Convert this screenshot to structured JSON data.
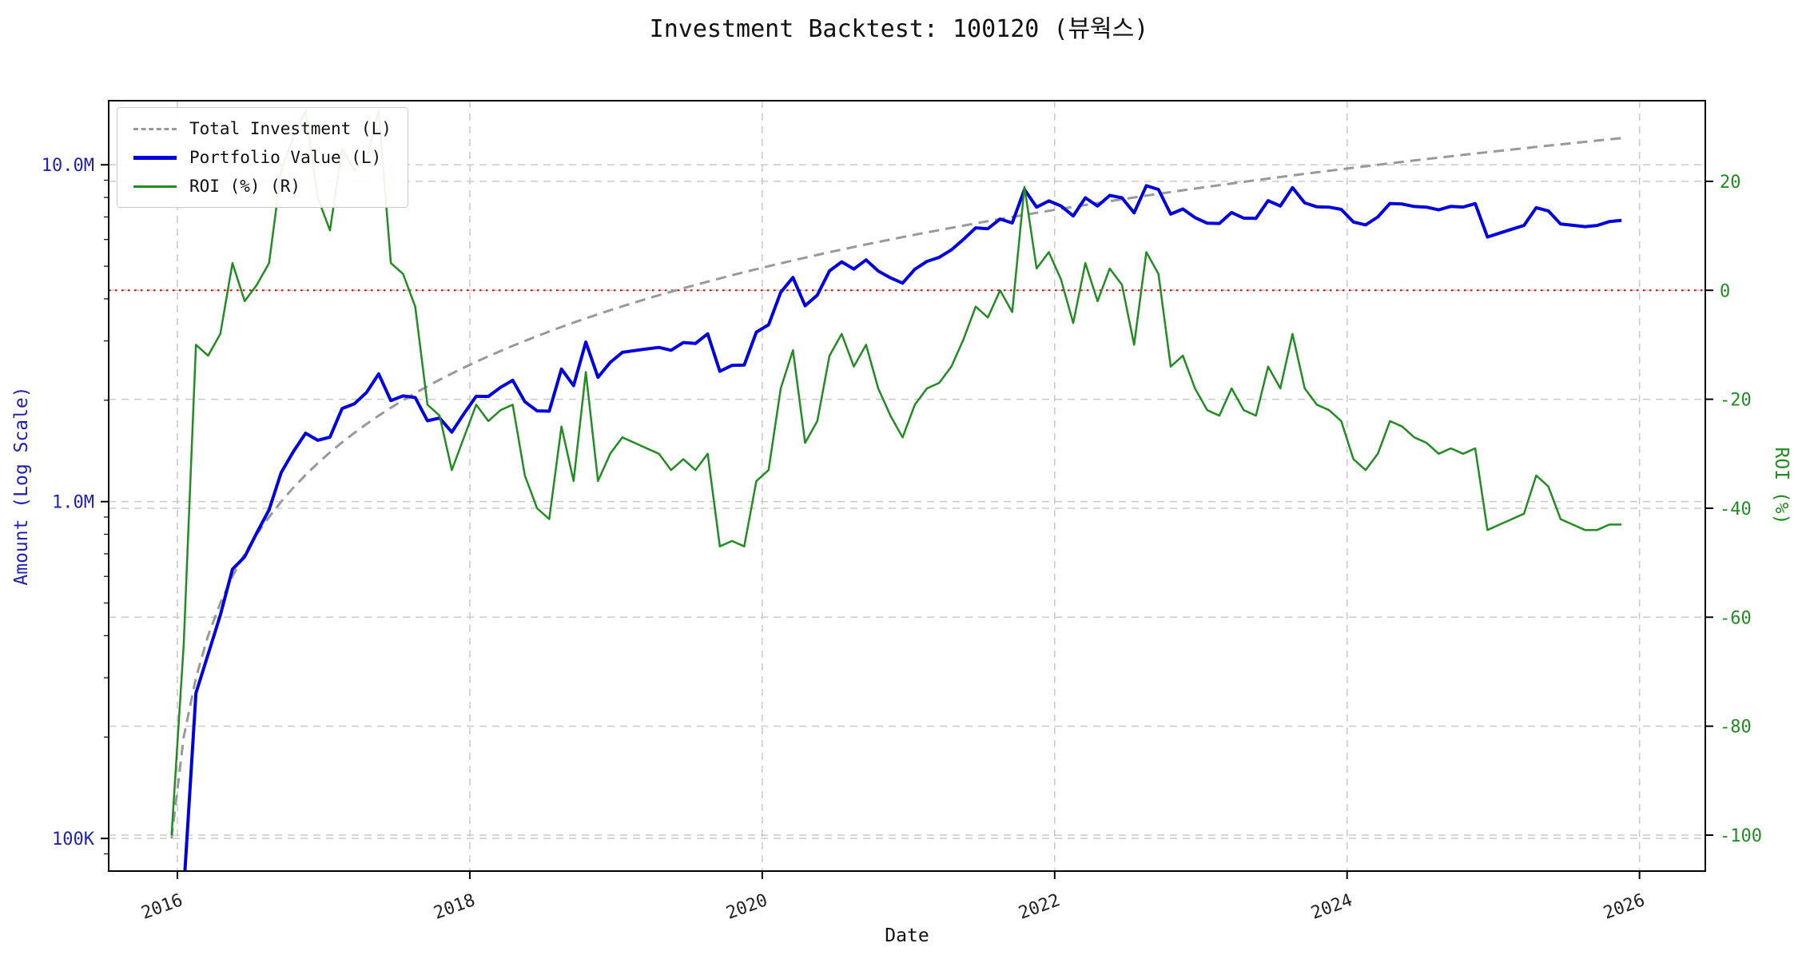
{
  "title": "Investment Backtest: 100120 (뷰웍스)",
  "axes": {
    "x_label": "Date",
    "left_label": "Amount (Log Scale)",
    "right_label": "ROI (%)"
  },
  "legend": {
    "items": [
      {
        "label": "Total Investment (L)"
      },
      {
        "label": "Portfolio Value (L)"
      },
      {
        "label": "ROI (%) (R)"
      }
    ]
  },
  "colors": {
    "total_investment": "#999999",
    "portfolio_value": "#0000dd",
    "roi": "#228b22",
    "zero_roi_line": "#cc0000",
    "grid": "#c9c9c9",
    "left_axis_text": "#2222aa",
    "right_axis_text": "#228b22",
    "x_axis_text": "#222222"
  },
  "chart_data": {
    "type": "line",
    "title": "Investment Backtest: 100120 (뷰웍스)",
    "xlabel": "Date",
    "ylabel_left": "Amount (Log Scale)",
    "ylabel_right": "ROI (%)",
    "x_unit": "month",
    "x_start_year_decimal": 2015.96,
    "x_step_years": 0.0833333,
    "n_points": 120,
    "xlim": [
      2015.53,
      2026.45
    ],
    "grid": true,
    "legend_position": "upper-left",
    "left_axis": {
      "scale": "log",
      "lim": [
        80000,
        15500000
      ],
      "ticks": [
        {
          "value": 10000000,
          "label": "10.0M"
        },
        {
          "value": 1000000,
          "label": "1.0M"
        },
        {
          "value": 100000,
          "label": "100K"
        }
      ]
    },
    "right_axis": {
      "scale": "linear",
      "lim": [
        -106.6,
        34.8
      ],
      "ticks": [
        {
          "value": 20,
          "label": "20"
        },
        {
          "value": 0,
          "label": "0"
        },
        {
          "value": -20,
          "label": "-20"
        },
        {
          "value": -40,
          "label": "-40"
        },
        {
          "value": -60,
          "label": "-60"
        },
        {
          "value": -80,
          "label": "-80"
        },
        {
          "value": -100,
          "label": "-100"
        }
      ]
    },
    "x_ticks": [
      {
        "value": 2016,
        "label": "2016"
      },
      {
        "value": 2018,
        "label": "2018"
      },
      {
        "value": 2020,
        "label": "2020"
      },
      {
        "value": 2022,
        "label": "2022"
      },
      {
        "value": 2024,
        "label": "2024"
      },
      {
        "value": 2026,
        "label": "2026"
      }
    ],
    "reference_line": {
      "axis": "right",
      "value": 0,
      "style": "dotted",
      "color": "#cc0000"
    },
    "series": [
      {
        "id": "total-investment",
        "name": "Total Investment (L)",
        "axis": "left",
        "color": "#999999",
        "style": "dashed",
        "width": 3,
        "values": [
          100000,
          200000,
          300000,
          400000,
          500000,
          600000,
          700000,
          800000,
          900000,
          1000000,
          1100000,
          1200000,
          1300000,
          1400000,
          1500000,
          1600000,
          1700000,
          1800000,
          1900000,
          2000000,
          2100000,
          2200000,
          2300000,
          2400000,
          2500000,
          2600000,
          2700000,
          2800000,
          2900000,
          3000000,
          3100000,
          3200000,
          3300000,
          3400000,
          3500000,
          3600000,
          3700000,
          3800000,
          3900000,
          4000000,
          4100000,
          4200000,
          4300000,
          4400000,
          4500000,
          4600000,
          4700000,
          4800000,
          4900000,
          5000000,
          5100000,
          5200000,
          5300000,
          5400000,
          5500000,
          5600000,
          5700000,
          5800000,
          5900000,
          6000000,
          6100000,
          6200000,
          6300000,
          6400000,
          6500000,
          6600000,
          6700000,
          6800000,
          6900000,
          7000000,
          7100000,
          7200000,
          7300000,
          7400000,
          7500000,
          7600000,
          7700000,
          7800000,
          7900000,
          8000000,
          8100000,
          8200000,
          8300000,
          8400000,
          8500000,
          8600000,
          8700000,
          8800000,
          8900000,
          9000000,
          9100000,
          9200000,
          9300000,
          9400000,
          9500000,
          9600000,
          9700000,
          9800000,
          9900000,
          10000000,
          10100000,
          10200000,
          10300000,
          10400000,
          10500000,
          10600000,
          10700000,
          10800000,
          10900000,
          11000000,
          11100000,
          11200000,
          11300000,
          11400000,
          11500000,
          11600000,
          11700000,
          11800000,
          11900000,
          12000000
        ]
      },
      {
        "id": "portfolio-value",
        "name": "Portfolio Value (L)",
        "axis": "left",
        "color": "#0000dd",
        "style": "solid",
        "width": 4,
        "values": [
          0,
          70000,
          270000,
          352000,
          460000,
          630000,
          686000,
          808000,
          945000,
          1220000,
          1408000,
          1596000,
          1521000,
          1554000,
          1890000,
          1952000,
          2108000,
          2394000,
          1995000,
          2060000,
          2037000,
          1738000,
          1771000,
          1608000,
          1825000,
          2054000,
          2052000,
          2184000,
          2291000,
          1980000,
          1860000,
          1856000,
          2475000,
          2210000,
          2975000,
          2340000,
          2590000,
          2774000,
          2808000,
          2840000,
          2870000,
          2814000,
          2967000,
          2948000,
          3150000,
          2438000,
          2538000,
          2544000,
          3185000,
          3350000,
          4182000,
          4628000,
          3816000,
          4104000,
          4840000,
          5152000,
          4902000,
          5220000,
          4838000,
          4620000,
          4453000,
          4898000,
          5166000,
          5312000,
          5590000,
          6006000,
          6499000,
          6460000,
          6900000,
          6720000,
          8449000,
          7488000,
          7811000,
          7548000,
          7050000,
          7980000,
          7546000,
          8112000,
          7979000,
          7200000,
          8667000,
          8446000,
          7138000,
          7392000,
          6970000,
          6708000,
          6699000,
          7216000,
          6942000,
          6930000,
          7826000,
          7544000,
          8556000,
          7708000,
          7505000,
          7488000,
          7372000,
          6762000,
          6633000,
          7000000,
          7676000,
          7650000,
          7519000,
          7488000,
          7350000,
          7526000,
          7490000,
          7668000,
          6104000,
          6270000,
          6438000,
          6608000,
          7458000,
          7296000,
          6670000,
          6612000,
          6552000,
          6608000,
          6783000,
          6840000
        ]
      },
      {
        "id": "roi",
        "name": "ROI (%) (R)",
        "axis": "right",
        "color": "#228b22",
        "style": "solid",
        "width": 2.5,
        "values": [
          -100,
          -65,
          -10,
          -12,
          -8,
          5,
          -2,
          1,
          5,
          22,
          28,
          33,
          17,
          11,
          26,
          22,
          24,
          33,
          5,
          3,
          -3,
          -21,
          -23,
          -33,
          -27,
          -21,
          -24,
          -22,
          -21,
          -34,
          -40,
          -42,
          -25,
          -35,
          -15,
          -35,
          -30,
          -27,
          -28,
          -29,
          -30,
          -33,
          -31,
          -33,
          -30,
          -47,
          -46,
          -47,
          -35,
          -33,
          -18,
          -11,
          -28,
          -24,
          -12,
          -8,
          -14,
          -10,
          -18,
          -23,
          -27,
          -21,
          -18,
          -17,
          -14,
          -9,
          -3,
          -5,
          0,
          -4,
          19,
          4,
          7,
          2,
          -6,
          5,
          -2,
          4,
          1,
          -10,
          7,
          3,
          -14,
          -12,
          -18,
          -22,
          -23,
          -18,
          -22,
          -23,
          -14,
          -18,
          -8,
          -18,
          -21,
          -22,
          -24,
          -31,
          -33,
          -30,
          -24,
          -25,
          -27,
          -28,
          -30,
          -29,
          -30,
          -29,
          -44,
          -43,
          -42,
          -41,
          -34,
          -36,
          -42,
          -43,
          -44,
          -44,
          -43,
          -43
        ]
      }
    ]
  }
}
